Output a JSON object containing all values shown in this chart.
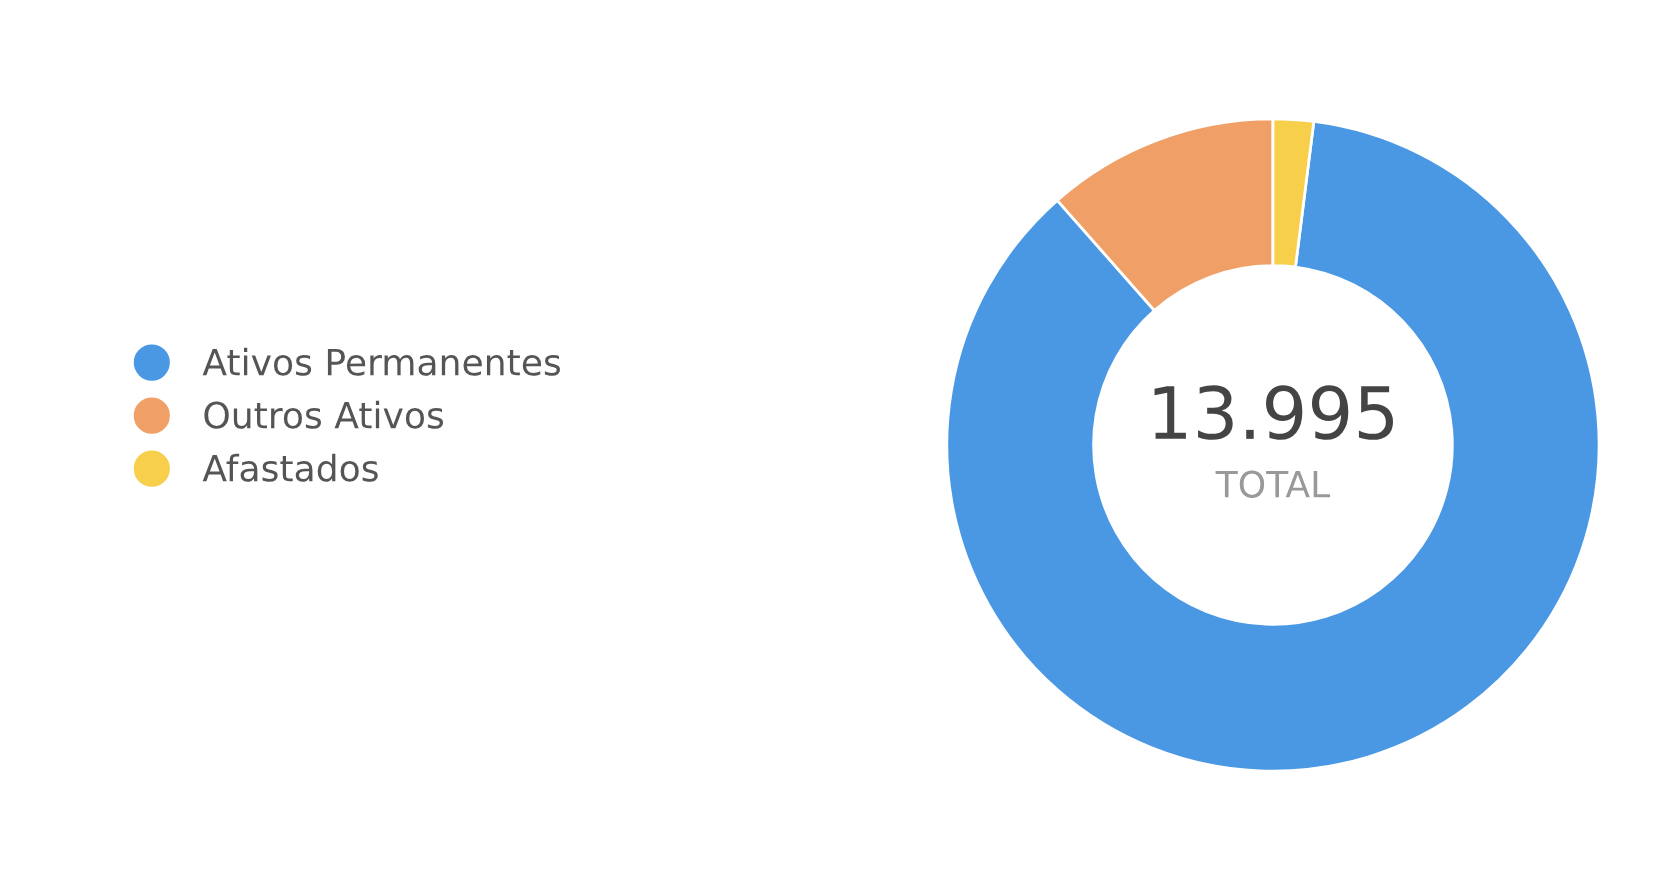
{
  "chart_data": {
    "type": "donut",
    "categories": [
      "Ativos Permanentes",
      "Outros Ativos",
      "Afastados"
    ],
    "values": [
      86.5,
      11.5,
      2.0
    ],
    "colors": [
      "#4a98e4",
      "#f0a066",
      "#f7cf4b"
    ],
    "annotations": [
      "13.995",
      "TOTAL"
    ],
    "legend": "left"
  }
}
